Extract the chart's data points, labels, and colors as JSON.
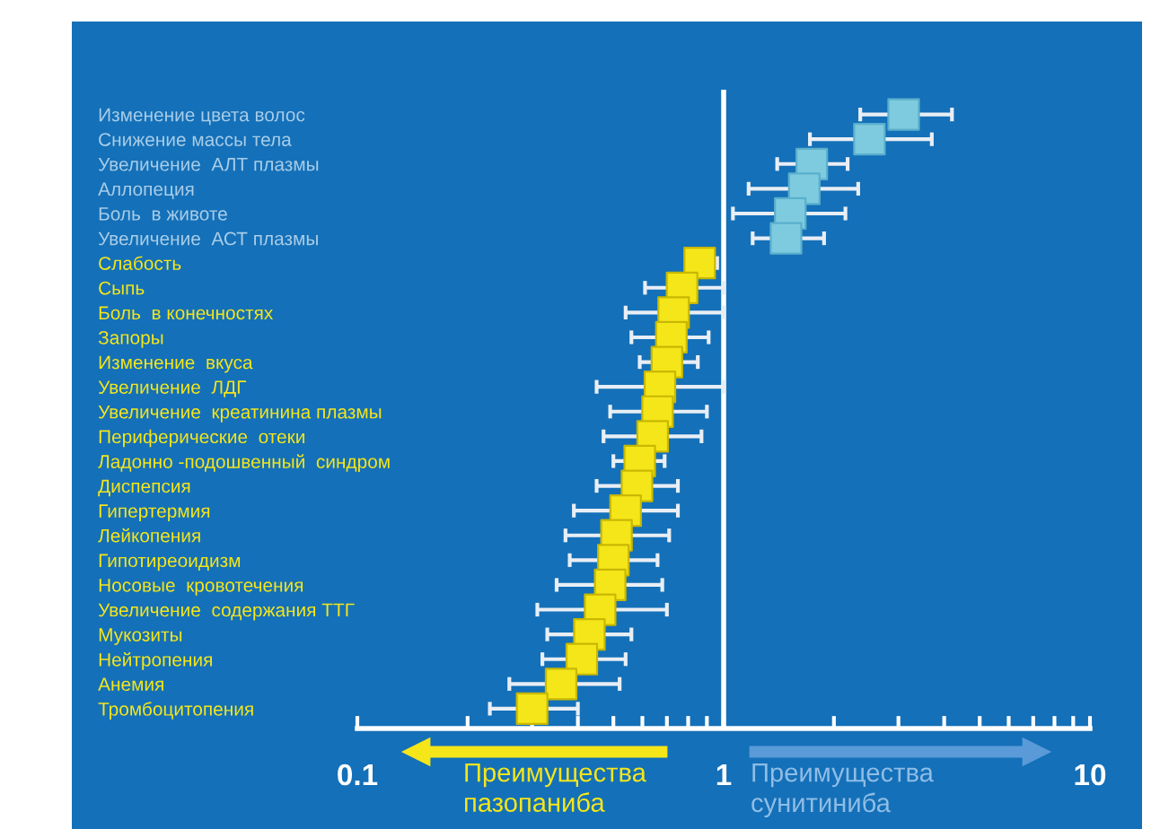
{
  "chart_data": {
    "type": "scatter",
    "orientation": "horizontal",
    "log": "x",
    "marker": "square",
    "grid": false,
    "legend": false,
    "categories": [
      "Изменение цвета волос",
      "Снижение массы тела",
      "Увеличение  АЛТ плазмы",
      "Аллопеция",
      "Боль  в животе",
      "Увеличение  АСТ плазмы",
      "Слабость",
      "Сыпь",
      "Боль  в конечностях",
      "Запоры",
      "Изменение  вкуса",
      "Увеличение  ЛДГ",
      "Увеличение  креатинина плазмы",
      "Периферические  отеки",
      "Ладонно -подошвенный  синдром",
      "Диспепсия",
      "Гипертермия",
      "Лейкопения",
      "Гипотиреоидизм",
      "Носовые  кровотечения",
      "Увеличение  содержания ТТГ",
      "Мукозиты",
      "Нейтропения",
      "Анемия",
      "Тромбоцитопения"
    ],
    "series": [
      {
        "color": "#7ecbe0",
        "values": [
          3.1,
          2.5,
          1.74,
          1.66,
          1.52,
          1.48,
          null,
          null,
          null,
          null,
          null,
          null,
          null,
          null,
          null,
          null,
          null,
          null,
          null,
          null,
          null,
          null,
          null,
          null,
          null
        ],
        "errors": [
          [
            2.36,
            4.2
          ],
          [
            1.72,
            3.7
          ],
          [
            1.4,
            2.18
          ],
          [
            1.17,
            2.33
          ],
          [
            1.06,
            2.15
          ],
          [
            1.2,
            1.88
          ],
          null,
          null,
          null,
          null,
          null,
          null,
          null,
          null,
          null,
          null,
          null,
          null,
          null,
          null,
          null,
          null,
          null,
          null,
          null
        ]
      },
      {
        "color": "#f5e61a",
        "values": [
          null,
          null,
          null,
          null,
          null,
          null,
          0.86,
          0.77,
          0.73,
          0.72,
          0.7,
          0.67,
          0.66,
          0.64,
          0.59,
          0.58,
          0.54,
          0.51,
          0.5,
          0.49,
          0.46,
          0.43,
          0.41,
          0.36,
          0.3
        ],
        "errors": [
          null,
          null,
          null,
          null,
          null,
          null,
          [
            0.79,
            0.96
          ],
          [
            0.61,
            1.0
          ],
          [
            0.54,
            1.0
          ],
          [
            0.56,
            0.91
          ],
          [
            0.59,
            0.85
          ],
          [
            0.45,
            1.0
          ],
          [
            0.49,
            0.9
          ],
          [
            0.47,
            0.87
          ],
          [
            0.5,
            0.69
          ],
          [
            0.45,
            0.75
          ],
          [
            0.39,
            0.75
          ],
          [
            0.37,
            0.71
          ],
          [
            0.38,
            0.66
          ],
          [
            0.35,
            0.68
          ],
          [
            0.31,
            0.7
          ],
          [
            0.33,
            0.56
          ],
          [
            0.32,
            0.54
          ],
          [
            0.26,
            0.52
          ],
          [
            0.23,
            0.4
          ]
        ]
      }
    ],
    "xlim": [
      0.1,
      10
    ],
    "xticks": [
      0.1,
      {
        "value": 0.2,
        "label": null
      },
      {
        "value": 0.3,
        "label": null
      },
      {
        "value": 0.4,
        "label": null
      },
      {
        "value": 0.5,
        "label": null
      },
      {
        "value": 0.6,
        "label": null
      },
      {
        "value": 0.7,
        "label": null
      },
      {
        "value": 0.8,
        "label": null
      },
      {
        "value": 0.9,
        "label": null
      },
      1,
      {
        "value": 2,
        "label": null
      },
      {
        "value": 3,
        "label": null
      },
      {
        "value": 4,
        "label": null
      },
      {
        "value": 5,
        "label": null
      },
      {
        "value": 6,
        "label": null
      },
      {
        "value": 7,
        "label": null
      },
      {
        "value": 8,
        "label": null
      },
      {
        "value": 9,
        "label": null
      },
      10
    ],
    "ref_lines": [
      {
        "axis": "x",
        "value": 1,
        "color": "#ffffff"
      }
    ],
    "annotations": [
      "Преимущества\nпазопаниба",
      "Преимущества\nсунитиниба"
    ]
  }
}
